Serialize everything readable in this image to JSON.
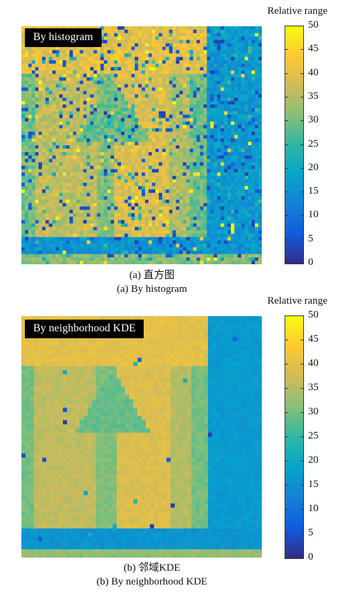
{
  "panels": [
    {
      "id": "a",
      "legend_label": "By histogram",
      "colorbar_title": "Relative range",
      "colorbar_ticks": [
        "50",
        "45",
        "40",
        "35",
        "30",
        "25",
        "20",
        "15",
        "10",
        "5",
        "0"
      ],
      "caption_cn": "(a) 直方图",
      "caption_en": "(a) By histogram"
    },
    {
      "id": "b",
      "legend_label": "By neighborhood KDE",
      "colorbar_title": "Relative range",
      "colorbar_ticks": [
        "50",
        "45",
        "40",
        "35",
        "30",
        "25",
        "20",
        "15",
        "10",
        "5",
        "0"
      ],
      "caption_cn": "(b) 邻域KDE",
      "caption_en": "(b) By neighborhood KDE"
    }
  ],
  "colormap": "parula",
  "colormap_stops": [
    "#352a87",
    "#0f5cdd",
    "#1481d6",
    "#06a4ca",
    "#2eb7a4",
    "#87bf77",
    "#d1bb59",
    "#fec832",
    "#f9fb0e"
  ],
  "value_range": [
    0,
    50
  ]
}
